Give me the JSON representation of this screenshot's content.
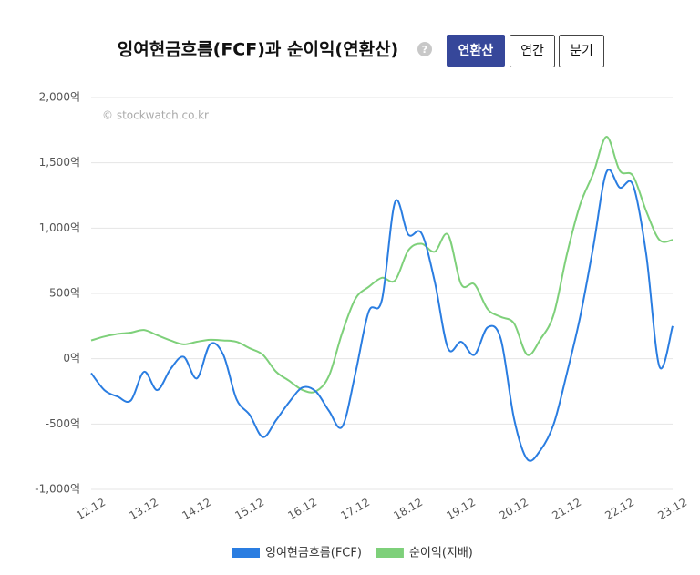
{
  "chart_data": {
    "type": "line",
    "title": "잉여현금흐름(FCF)과 순이익(연환산)",
    "help_icon": "?",
    "buttons": [
      "연환산",
      "연간",
      "분기"
    ],
    "annotation": "© stockwatch.co.kr",
    "categories": [
      "12.12",
      null,
      null,
      null,
      "13.12",
      null,
      null,
      null,
      "14.12",
      null,
      null,
      null,
      "15.12",
      null,
      null,
      null,
      "16.12",
      null,
      null,
      null,
      "17.12",
      null,
      null,
      null,
      "18.12",
      null,
      null,
      null,
      "19.12",
      null,
      null,
      null,
      "20.12",
      null,
      null,
      null,
      "21.12",
      null,
      null,
      null,
      "22.12",
      null,
      null,
      null,
      "23.12"
    ],
    "series": [
      {
        "name": "잉여현금흐름(FCF)",
        "color": "#2a7de1",
        "values": [
          -110,
          -240,
          -290,
          -320,
          -100,
          -240,
          -80,
          15,
          -150,
          110,
          30,
          -310,
          -430,
          -600,
          -470,
          -330,
          -220,
          -250,
          -400,
          -520,
          -110,
          360,
          450,
          1200,
          950,
          960,
          590,
          80,
          130,
          30,
          240,
          150,
          -460,
          -770,
          -700,
          -500,
          -110,
          320,
          860,
          1430,
          1310,
          1330,
          800,
          -60,
          250
        ]
      },
      {
        "name": "순이익(지배)",
        "color": "#7ed07a",
        "values": [
          140,
          170,
          190,
          200,
          220,
          180,
          140,
          110,
          130,
          145,
          140,
          130,
          80,
          30,
          -100,
          -170,
          -240,
          -250,
          -130,
          200,
          460,
          550,
          620,
          600,
          830,
          880,
          820,
          950,
          570,
          570,
          380,
          320,
          270,
          30,
          150,
          340,
          800,
          1180,
          1420,
          1700,
          1440,
          1400,
          1130,
          910,
          910
        ]
      }
    ],
    "ylim": [
      -1000,
      2000
    ],
    "yticks": [
      {
        "value": -1000,
        "label": "-1,000억"
      },
      {
        "value": -500,
        "label": "-500억"
      },
      {
        "value": 0,
        "label": "0억"
      },
      {
        "value": 500,
        "label": "500억"
      },
      {
        "value": 1000,
        "label": "1,000억"
      },
      {
        "value": 1500,
        "label": "1,500억"
      },
      {
        "value": 2000,
        "label": "2,000억"
      }
    ],
    "grid": true
  }
}
